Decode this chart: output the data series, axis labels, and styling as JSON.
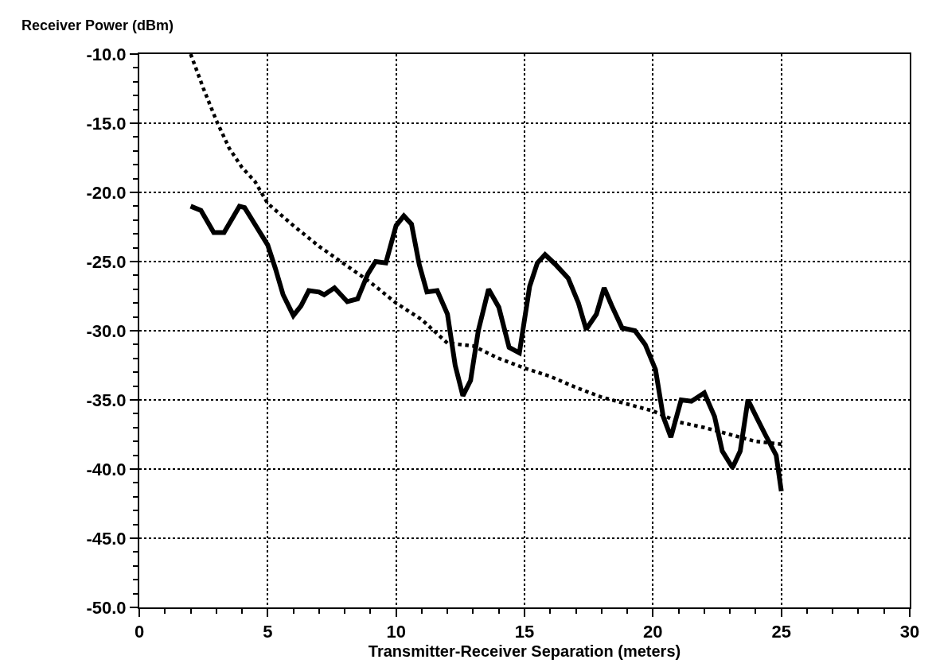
{
  "chart_data": {
    "type": "line",
    "xlabel": "Transmitter-Receiver Separation (meters)",
    "ylabel": "Receiver Power (dBm)",
    "xlim": [
      0,
      30
    ],
    "xticks": [
      0,
      5,
      10,
      15,
      20,
      25,
      30
    ],
    "ylim": [
      -50,
      -10
    ],
    "yticks": [
      {
        "value": -50,
        "label": "-50.0"
      },
      {
        "value": -45,
        "label": "-45.0"
      },
      {
        "value": -40,
        "label": "-40.0"
      },
      {
        "value": -35,
        "label": "-35.0"
      },
      {
        "value": -30,
        "label": "-30.0"
      },
      {
        "value": -25,
        "label": "-25.0"
      },
      {
        "value": -20,
        "label": "-20.0"
      },
      {
        "value": -15,
        "label": "-15.0"
      },
      {
        "value": -10,
        "label": "-10.0"
      }
    ],
    "grid": true,
    "marker": "none",
    "series": [
      {
        "color": "#000000",
        "line_style": "solid",
        "x": [
          2,
          2.4,
          2.9,
          3.3,
          3.9,
          4.1,
          4.5,
          5,
          5.3,
          5.6,
          6,
          6.3,
          6.6,
          7,
          7.2,
          7.6,
          8.1,
          8.5,
          8.9,
          9.2,
          9.6,
          10,
          10.3,
          10.6,
          10.9,
          11.2,
          11.6,
          12,
          12.3,
          12.6,
          12.9,
          13.2,
          13.6,
          14,
          14.4,
          14.8,
          15.2,
          15.5,
          15.8,
          16.2,
          16.7,
          17.1,
          17.4,
          17.8,
          18.1,
          18.4,
          18.8,
          19.3,
          19.7,
          20.1,
          20.4,
          20.7,
          21.1,
          21.5,
          22,
          22.4,
          22.7,
          23.1,
          23.4,
          23.7,
          24.1,
          24.4,
          24.8,
          25
        ],
        "values": [
          -21,
          -21.3,
          -22.9,
          -22.9,
          -21,
          -21.1,
          -22.3,
          -23.8,
          -25.5,
          -27.4,
          -28.9,
          -28.2,
          -27.1,
          -27.2,
          -27.4,
          -26.9,
          -27.9,
          -27.7,
          -25.9,
          -25,
          -25.1,
          -22.4,
          -21.7,
          -22.3,
          -25.2,
          -27.2,
          -27.1,
          -28.8,
          -32.5,
          -34.7,
          -33.6,
          -30,
          -27,
          -28.3,
          -31.2,
          -31.6,
          -26.8,
          -25.1,
          -24.5,
          -25.2,
          -26.2,
          -28,
          -29.9,
          -28.8,
          -26.9,
          -28.2,
          -29.8,
          -30,
          -31,
          -32.8,
          -36.2,
          -37.7,
          -35,
          -35.1,
          -34.5,
          -36.2,
          -38.7,
          -39.9,
          -38.7,
          -35,
          -36.5,
          -37.6,
          -39,
          -41.6
        ]
      },
      {
        "color": "#000000",
        "line_style": "dotted",
        "x": [
          2,
          2.5,
          3,
          3.5,
          4,
          4.5,
          5,
          5.5,
          6,
          7,
          8,
          9,
          10,
          11,
          12,
          13,
          14,
          15,
          16,
          17,
          18,
          19,
          20,
          21,
          22,
          23,
          24,
          25
        ],
        "values": [
          -10,
          -12.5,
          -14.8,
          -16.8,
          -18.2,
          -19.2,
          -20.8,
          -21.6,
          -22.4,
          -23.9,
          -25.2,
          -26.5,
          -28,
          -29.2,
          -30.9,
          -31.1,
          -32,
          -32.7,
          -33.3,
          -34.1,
          -34.8,
          -35.3,
          -35.8,
          -36.6,
          -37,
          -37.5,
          -38,
          -38.2
        ]
      }
    ]
  }
}
